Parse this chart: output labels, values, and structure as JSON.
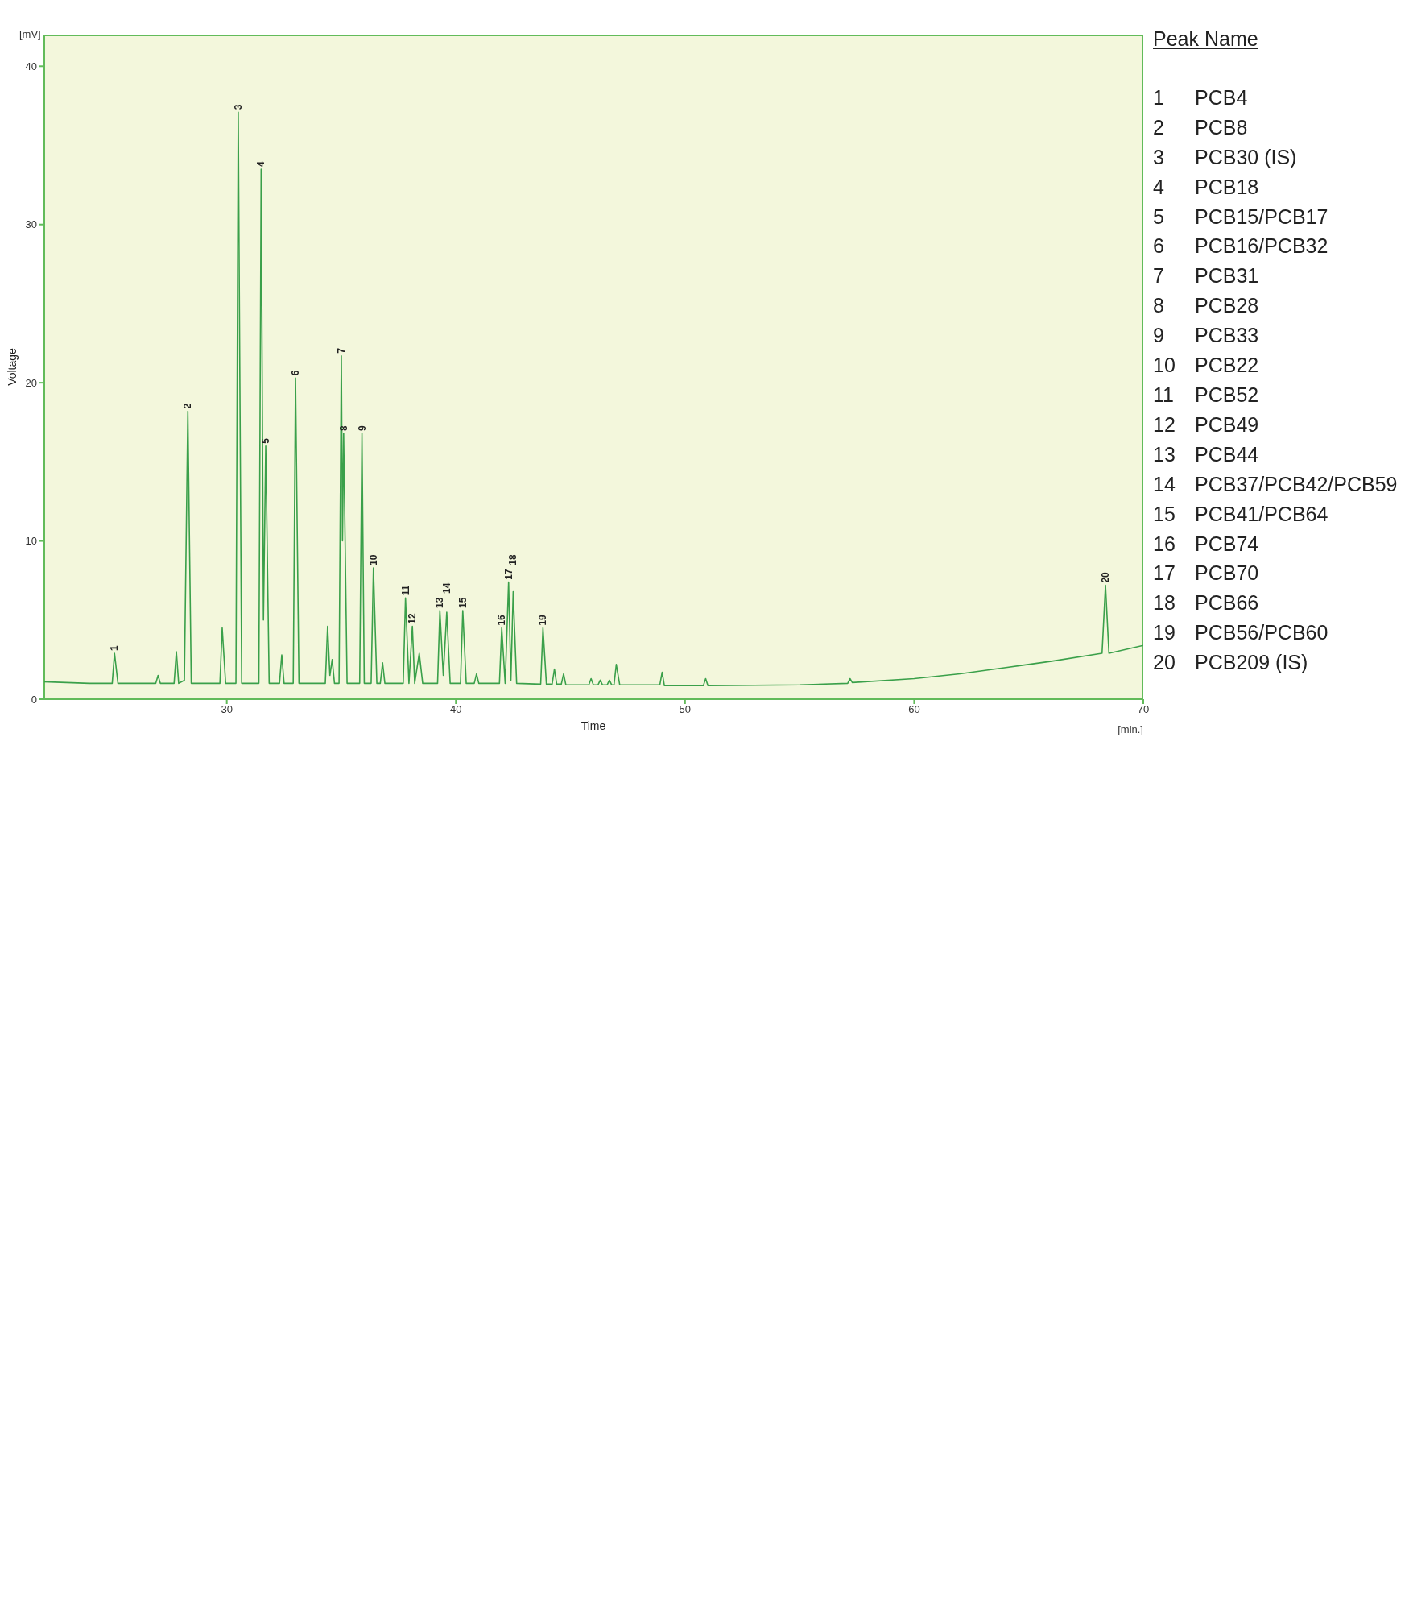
{
  "chart_data": {
    "type": "line",
    "xlabel": "Time",
    "ylabel": "Voltage",
    "xlim": [
      22,
      70
    ],
    "ylim": [
      0,
      42
    ],
    "xticks": [
      30,
      40,
      50,
      60,
      70
    ],
    "yticks": [
      0,
      10,
      20,
      30,
      40
    ],
    "grid": false,
    "legend": false,
    "marker": "none",
    "line_style": "solid",
    "series": [
      {
        "color": "#3aa04a",
        "x": [
          22,
          24,
          25.0,
          25.1,
          25.25,
          26.9,
          27.0,
          27.1,
          27.7,
          27.8,
          27.9,
          28.15,
          28.3,
          28.45,
          29.7,
          29.8,
          29.95,
          30.4,
          30.5,
          30.65,
          31.4,
          31.5,
          31.6,
          31.7,
          31.85,
          32.3,
          32.4,
          32.5,
          32.9,
          33.0,
          33.15,
          34.3,
          34.4,
          34.5,
          34.6,
          34.7,
          34.9,
          35.0,
          35.05,
          35.1,
          35.25,
          35.8,
          35.9,
          36.0,
          36.3,
          36.4,
          36.55,
          36.7,
          36.8,
          36.9,
          37.7,
          37.8,
          37.95,
          38.1,
          38.2,
          38.4,
          38.55,
          39.2,
          39.3,
          39.45,
          39.6,
          39.75,
          40.2,
          40.3,
          40.45,
          40.8,
          40.9,
          41.0,
          41.9,
          42.0,
          42.15,
          42.3,
          42.4,
          42.5,
          42.65,
          43.7,
          43.8,
          43.95,
          44.2,
          44.3,
          44.4,
          44.6,
          44.7,
          44.8,
          45.8,
          45.9,
          46.0,
          46.2,
          46.3,
          46.4,
          46.6,
          46.7,
          46.8,
          46.9,
          47.0,
          47.15,
          48.9,
          49.0,
          49.1,
          50.8,
          50.9,
          51.0,
          55,
          57.1,
          57.2,
          57.3,
          60,
          62,
          64,
          66,
          68.2,
          68.35,
          68.5,
          70
        ],
        "values": [
          1.1,
          1.0,
          1.0,
          2.9,
          1.0,
          1.0,
          1.5,
          1.0,
          1.0,
          3.0,
          1.0,
          1.2,
          18.2,
          1.0,
          1.0,
          4.5,
          1.0,
          1.0,
          37.1,
          1.0,
          1.0,
          33.5,
          5.0,
          16.0,
          1.0,
          1.0,
          2.8,
          1.0,
          1.0,
          20.3,
          1.0,
          1.0,
          4.6,
          1.5,
          2.5,
          1.0,
          1.0,
          21.7,
          10,
          16.8,
          1.0,
          1.0,
          16.8,
          1.0,
          1.0,
          8.3,
          1.0,
          1.0,
          2.3,
          1.0,
          1.0,
          6.4,
          1.0,
          4.6,
          1.0,
          2.9,
          1.0,
          1.0,
          5.6,
          1.5,
          5.5,
          1.0,
          1.0,
          5.6,
          1.0,
          1.0,
          1.6,
          1.0,
          1.0,
          4.5,
          1.0,
          7.4,
          1.2,
          6.8,
          1.0,
          0.95,
          4.5,
          0.95,
          0.95,
          1.9,
          0.95,
          0.95,
          1.6,
          0.9,
          0.9,
          1.3,
          0.9,
          0.9,
          1.2,
          0.9,
          0.9,
          1.2,
          0.9,
          0.9,
          2.2,
          0.9,
          0.9,
          1.7,
          0.85,
          0.85,
          1.3,
          0.85,
          0.9,
          1.0,
          1.3,
          1.05,
          1.3,
          1.6,
          2.0,
          2.4,
          2.9,
          7.2,
          2.9,
          3.4
        ]
      }
    ],
    "annotations": [
      "[mV]",
      "[min.]",
      "Peak Name",
      "1 PCB4",
      "2 PCB8",
      "3 PCB30 (IS)",
      "4 PCB18",
      "5 PCB15/PCB17",
      "6 PCB16/PCB32",
      "7 PCB31",
      "8 PCB28",
      "9 PCB33",
      "10 PCB22",
      "11 PCB52",
      "12 PCB49",
      "13 PCB44",
      "14 PCB37/PCB42/PCB59",
      "15 PCB41/PCB64",
      "16 PCB74",
      "17 PCB70",
      "18 PCB66",
      "19 PCB56/PCB60",
      "20 PCB209 (IS)",
      {
        "text": "1",
        "x": 25.1,
        "y": 2.9
      },
      {
        "text": "2",
        "x": 28.3,
        "y": 18.2
      },
      {
        "text": "3",
        "x": 30.5,
        "y": 37.1
      },
      {
        "text": "4",
        "x": 31.5,
        "y": 33.5
      },
      {
        "text": "5",
        "x": 31.7,
        "y": 16.0
      },
      {
        "text": "6",
        "x": 33.0,
        "y": 20.3
      },
      {
        "text": "7",
        "x": 35.0,
        "y": 21.7
      },
      {
        "text": "8",
        "x": 35.1,
        "y": 16.8
      },
      {
        "text": "9",
        "x": 35.9,
        "y": 16.8
      },
      {
        "text": "10",
        "x": 36.4,
        "y": 8.3
      },
      {
        "text": "11",
        "x": 37.8,
        "y": 6.4
      },
      {
        "text": "12",
        "x": 38.1,
        "y": 4.6
      },
      {
        "text": "13",
        "x": 39.3,
        "y": 5.6
      },
      {
        "text": "14",
        "x": 39.6,
        "y": 5.5
      },
      {
        "text": "15",
        "x": 40.3,
        "y": 5.6
      },
      {
        "text": "16",
        "x": 42.0,
        "y": 4.5
      },
      {
        "text": "17",
        "x": 42.3,
        "y": 7.4
      },
      {
        "text": "18",
        "x": 42.5,
        "y": 6.8
      },
      {
        "text": "19",
        "x": 43.8,
        "y": 4.5
      },
      {
        "text": "20",
        "x": 68.35,
        "y": 7.2
      }
    ]
  }
}
